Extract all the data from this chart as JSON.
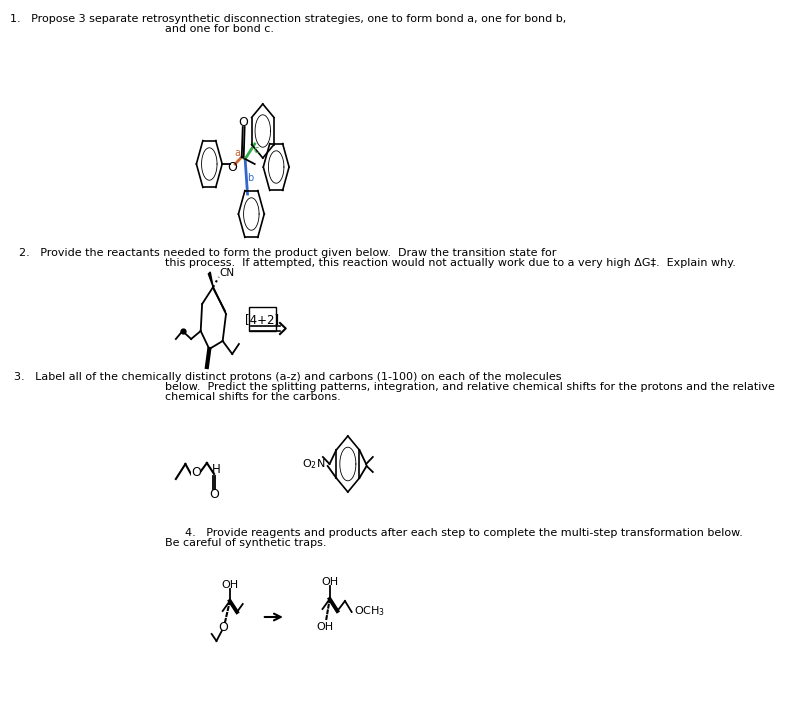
{
  "bg_color": "#ffffff",
  "text_color": "#000000",
  "body_fontsize": 8.0,
  "q1_line1": "1.   Propose 3 separate retrosynthetic disconnection strategies, one to form bond a, one for bond b,",
  "q1_line2": "and one for bond c.",
  "q2_line1": "2.   Provide the reactants needed to form the product given below.  Draw the transition state for",
  "q2_line2": "this process.  If attempted, this reaction would not actually work due to a very high ΔG‡.  Explain why.",
  "q3_line1": "3.   Label all of the chemically distinct protons (a-z) and carbons (1-100) on each of the molecules",
  "q3_line2": "below.  Predict the splitting patterns, integration, and relative chemical shifts for the protons and the relative",
  "q3_line3": "chemical shifts for the carbons.",
  "q4_line1": "4.   Provide reagents and products after each step to complete the multi-step transformation below.",
  "q4_line2": "Be careful of synthetic traps.",
  "bond_a_color": "#cc6633",
  "bond_b_color": "#3366cc",
  "bond_c_color": "#33aa44"
}
